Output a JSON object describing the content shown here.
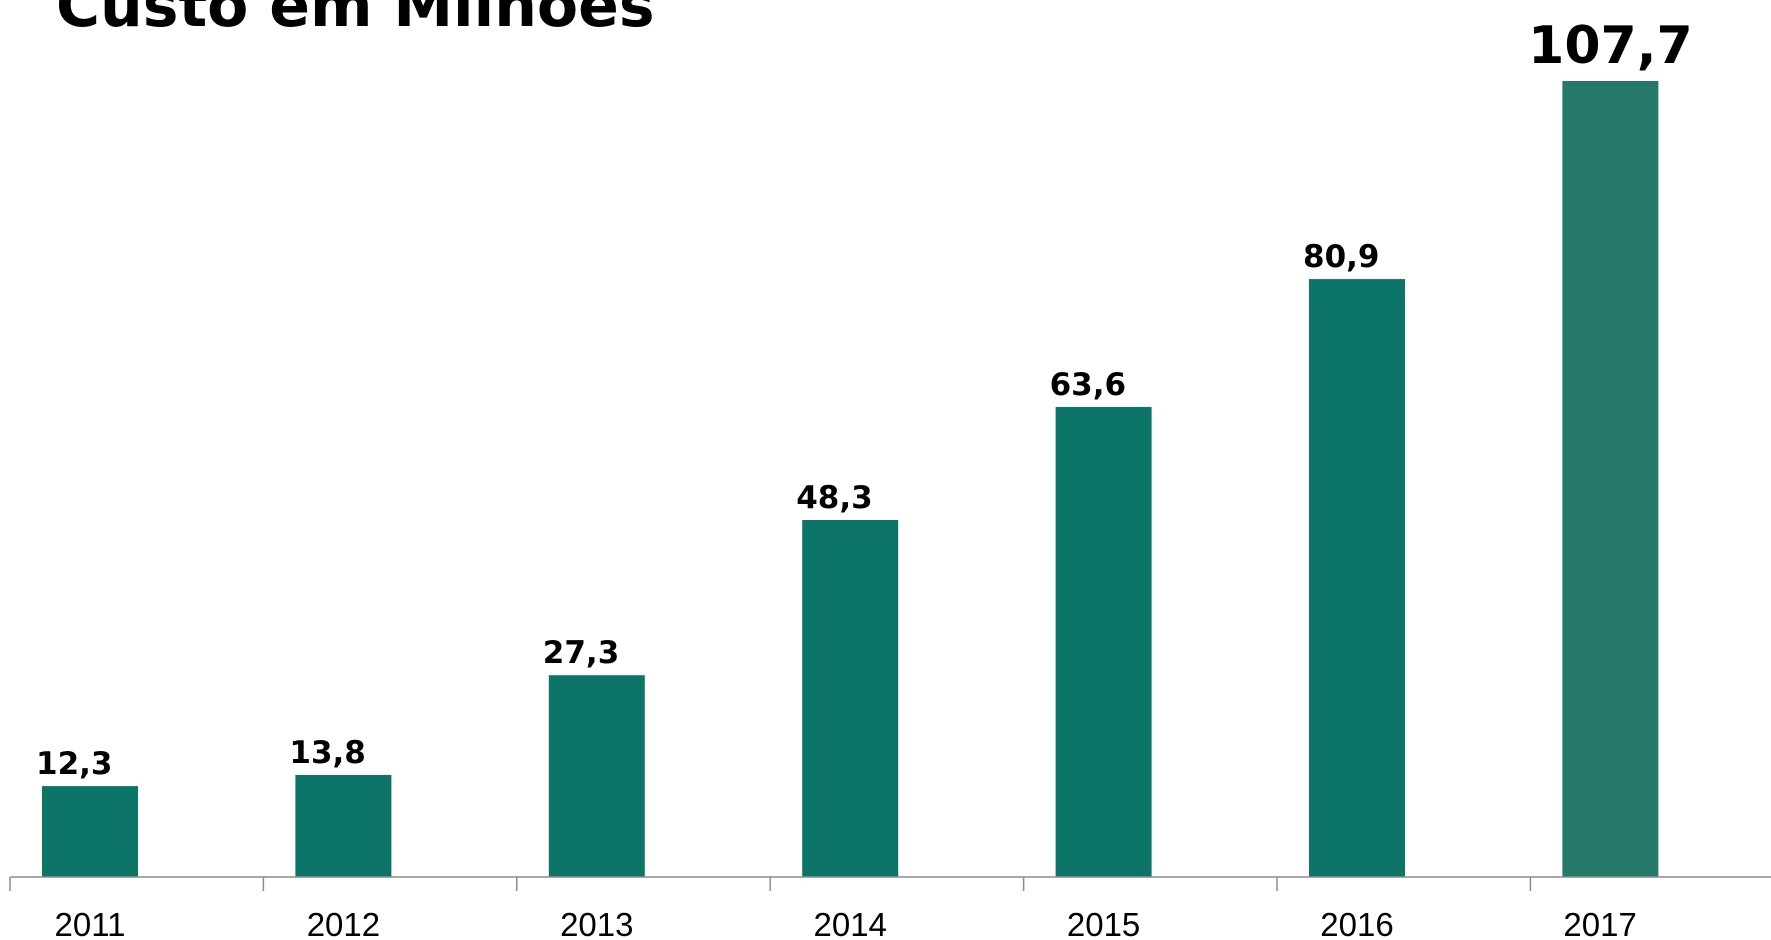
{
  "chart_data": {
    "type": "bar",
    "title": "Custo em Milhões",
    "categories": [
      "2011",
      "2012",
      "2013",
      "2014",
      "2015",
      "2016",
      "2017"
    ],
    "values": [
      12.3,
      13.8,
      27.3,
      48.3,
      63.6,
      80.9,
      107.7
    ],
    "value_labels": [
      "12,3",
      "13,8",
      "27,3",
      "48,3",
      "63,6",
      "80,9",
      "107,7"
    ],
    "xlabel": "",
    "ylabel": "",
    "ylim": [
      0,
      107.7
    ],
    "grid": false,
    "legend": "none",
    "colors": {
      "bar": "#0c7567",
      "highlight_bar": "#25796a"
    }
  }
}
